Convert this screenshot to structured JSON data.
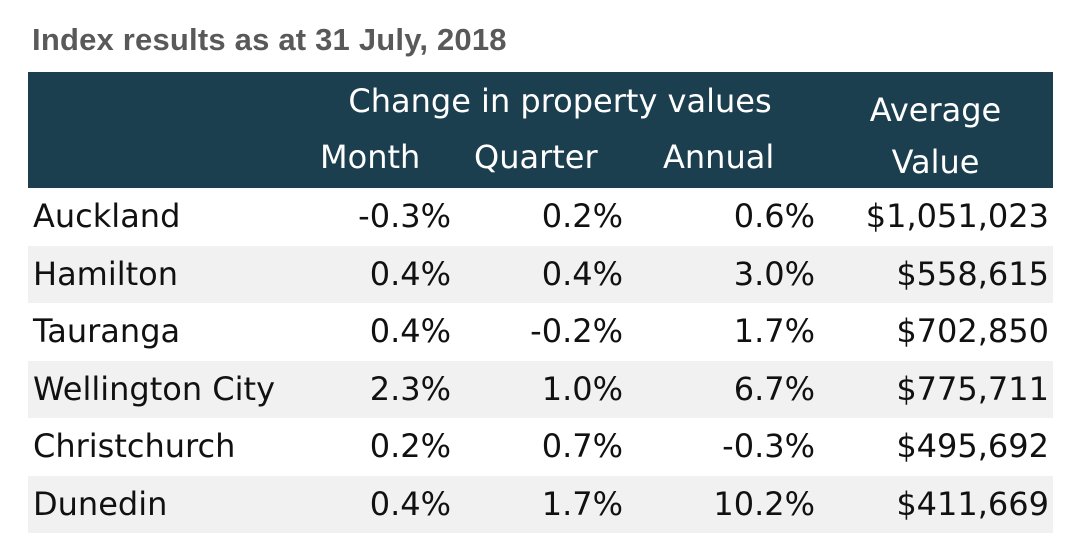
{
  "title": "Index results as at 31 July, 2018",
  "colors": {
    "header_bg": "#1c3f4f",
    "header_text": "#ffffff",
    "title_text": "#595959",
    "alt_row": "#f1f1f1"
  },
  "chart_data": {
    "type": "table",
    "title": "Index results as at 31 July, 2018",
    "header_group": "Change in property values",
    "columns": [
      "Month",
      "Quarter",
      "Annual"
    ],
    "value_column": [
      "Average",
      "Value"
    ],
    "rows": [
      {
        "city": "Auckland",
        "month": "-0.3%",
        "quarter": "0.2%",
        "annual": "0.6%",
        "value": "$1,051,023"
      },
      {
        "city": "Hamilton",
        "month": "0.4%",
        "quarter": "0.4%",
        "annual": "3.0%",
        "value": "$558,615"
      },
      {
        "city": "Tauranga",
        "month": "0.4%",
        "quarter": "-0.2%",
        "annual": "1.7%",
        "value": "$702,850"
      },
      {
        "city": "Wellington City",
        "month": "2.3%",
        "quarter": "1.0%",
        "annual": "6.7%",
        "value": "$775,711"
      },
      {
        "city": "Christchurch",
        "month": "0.2%",
        "quarter": "0.7%",
        "annual": "-0.3%",
        "value": "$495,692"
      },
      {
        "city": "Dunedin",
        "month": "0.4%",
        "quarter": "1.7%",
        "annual": "10.2%",
        "value": "$411,669"
      }
    ]
  }
}
